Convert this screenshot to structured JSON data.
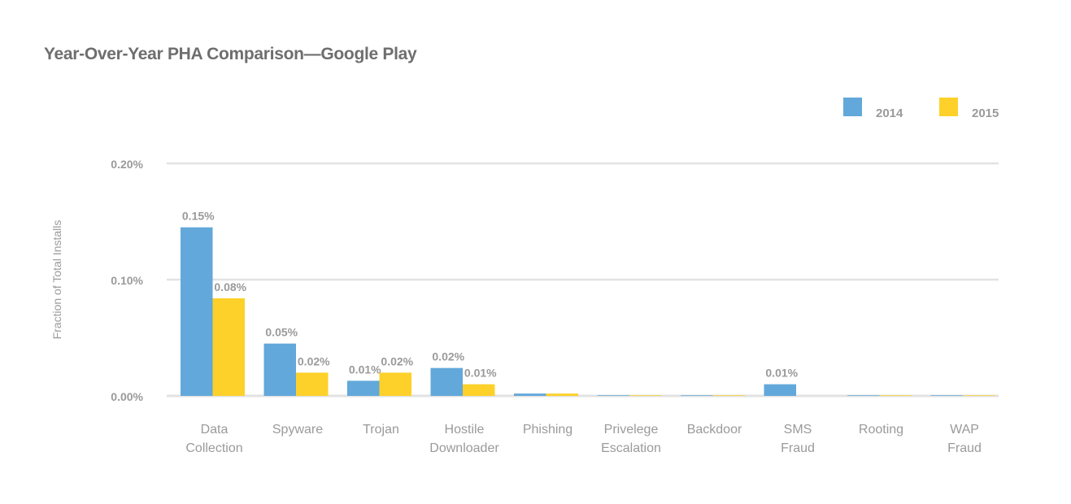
{
  "chart_data": {
    "type": "bar",
    "title": "Year-Over-Year PHA Comparison—Google Play",
    "xlabel": "",
    "ylabel": "Fraction of Total Installs",
    "ylim": [
      0,
      0.2
    ],
    "yticks": [
      {
        "value": 0.0,
        "label": "0.00%"
      },
      {
        "value": 0.1,
        "label": "0.10%"
      },
      {
        "value": 0.2,
        "label": "0.20%"
      }
    ],
    "categories": [
      [
        "Data",
        "Collection"
      ],
      [
        "Spyware"
      ],
      [
        "Trojan"
      ],
      [
        "Hostile",
        "Downloader"
      ],
      [
        "Phishing"
      ],
      [
        "Privelege",
        "Escalation"
      ],
      [
        "Backdoor"
      ],
      [
        "SMS",
        "Fraud"
      ],
      [
        "Rooting"
      ],
      [
        "WAP",
        "Fraud"
      ]
    ],
    "series": [
      {
        "name": "2014",
        "color": "#62a8da",
        "values": [
          0.145,
          0.045,
          0.013,
          0.024,
          0.002,
          0.0005,
          0.0005,
          0.01,
          0.0005,
          0.0005
        ],
        "data_labels": [
          "0.15%",
          "0.05%",
          "0.01%",
          "0.02%",
          "",
          "",
          "",
          "0.01%",
          "",
          ""
        ]
      },
      {
        "name": "2015",
        "color": "#fdd12a",
        "values": [
          0.084,
          0.02,
          0.02,
          0.01,
          0.002,
          0.0005,
          0.0005,
          0.0,
          0.0005,
          0.0005
        ],
        "data_labels": [
          "0.08%",
          "0.02%",
          "0.02%",
          "0.01%",
          "",
          "",
          "",
          "",
          "",
          ""
        ]
      }
    ],
    "legend_position": "top-right",
    "grid": true
  }
}
